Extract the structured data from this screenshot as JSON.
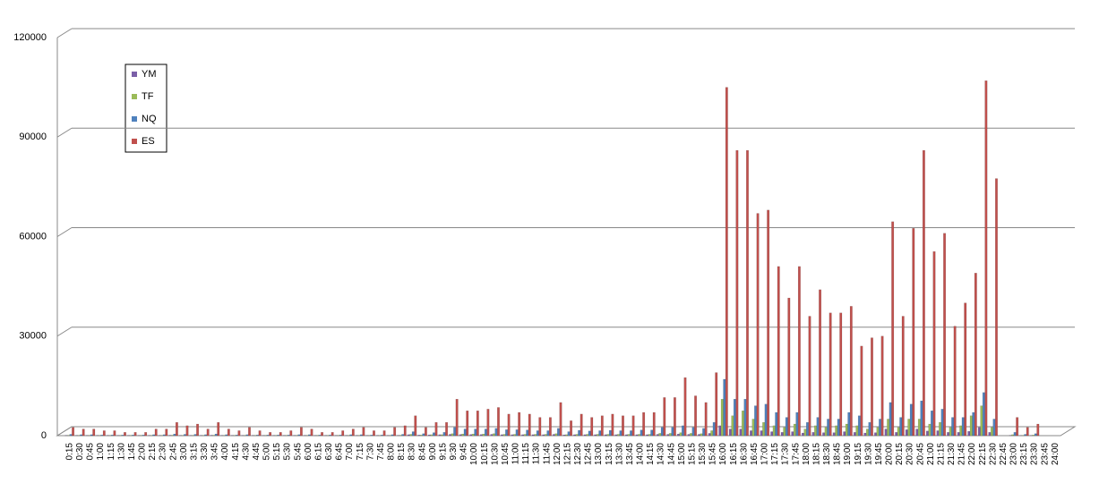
{
  "chart_data": {
    "type": "bar",
    "categories": [
      "0:15",
      "0:30",
      "0:45",
      "1:00",
      "1:15",
      "1:30",
      "1:45",
      "2:00",
      "2:15",
      "2:30",
      "2:45",
      "3:00",
      "3:15",
      "3:30",
      "3:45",
      "4:00",
      "4:15",
      "4:30",
      "4:45",
      "5:00",
      "5:15",
      "5:30",
      "5:45",
      "6:00",
      "6:15",
      "6:30",
      "6:45",
      "7:00",
      "7:15",
      "7:30",
      "7:45",
      "8:00",
      "8:15",
      "8:30",
      "8:45",
      "9:00",
      "9:15",
      "9:30",
      "9:45",
      "10:00",
      "10:15",
      "10:30",
      "10:45",
      "11:00",
      "11:15",
      "11:30",
      "11:45",
      "12:00",
      "12:15",
      "12:30",
      "12:45",
      "13:00",
      "13:15",
      "13:30",
      "13:45",
      "14:00",
      "14:15",
      "14:30",
      "14:45",
      "15:00",
      "15:15",
      "15:30",
      "15:45",
      "16:00",
      "16:15",
      "16:30",
      "16:45",
      "17:00",
      "17:15",
      "17:30",
      "17:45",
      "18:00",
      "18:15",
      "18:30",
      "18:45",
      "19:00",
      "19:15",
      "19:30",
      "19:45",
      "20:00",
      "20:15",
      "20:30",
      "20:45",
      "21:00",
      "21:15",
      "21:30",
      "21:45",
      "22:00",
      "22:15",
      "22:30",
      "22:45",
      "23:00",
      "23:15",
      "23:30",
      "23:45",
      "24:00"
    ],
    "series": [
      {
        "name": "YM",
        "color": "#7b5fa8",
        "values": [
          100,
          100,
          100,
          100,
          100,
          100,
          100,
          100,
          100,
          100,
          150,
          100,
          100,
          100,
          150,
          100,
          100,
          100,
          100,
          100,
          100,
          100,
          100,
          100,
          100,
          100,
          100,
          100,
          100,
          100,
          100,
          100,
          100,
          300,
          200,
          250,
          300,
          400,
          350,
          350,
          350,
          400,
          300,
          300,
          300,
          300,
          300,
          400,
          250,
          300,
          300,
          300,
          300,
          300,
          300,
          300,
          300,
          400,
          400,
          500,
          400,
          400,
          700,
          3000,
          2000,
          2000,
          1500,
          1500,
          1200,
          1000,
          1200,
          800,
          1000,
          900,
          900,
          1200,
          1000,
          800,
          900,
          2000,
          1000,
          1800,
          2000,
          1400,
          1500,
          1000,
          1000,
          1300,
          2500,
          1000,
          0,
          100,
          50,
          80,
          0,
          0
        ]
      },
      {
        "name": "TF",
        "color": "#9bbb59",
        "values": [
          100,
          100,
          100,
          100,
          100,
          100,
          100,
          100,
          100,
          100,
          150,
          100,
          100,
          100,
          150,
          100,
          100,
          100,
          100,
          100,
          100,
          100,
          100,
          100,
          100,
          100,
          100,
          100,
          100,
          100,
          100,
          100,
          150,
          400,
          200,
          300,
          300,
          600,
          500,
          500,
          500,
          600,
          400,
          400,
          400,
          400,
          400,
          600,
          300,
          400,
          400,
          400,
          400,
          400,
          400,
          400,
          400,
          700,
          700,
          900,
          700,
          600,
          1500,
          11000,
          6000,
          7500,
          5000,
          4000,
          3000,
          2500,
          3500,
          2000,
          3000,
          2500,
          3000,
          3500,
          3000,
          2000,
          2500,
          5000,
          2500,
          5000,
          5000,
          3500,
          4000,
          2500,
          3000,
          6000,
          9000,
          2500,
          0,
          300,
          100,
          200,
          0,
          0
        ]
      },
      {
        "name": "NQ",
        "color": "#4f81bd",
        "values": [
          400,
          300,
          300,
          200,
          200,
          200,
          200,
          200,
          300,
          300,
          500,
          400,
          400,
          300,
          500,
          300,
          200,
          300,
          200,
          200,
          200,
          200,
          300,
          300,
          200,
          200,
          200,
          300,
          300,
          200,
          200,
          300,
          400,
          1200,
          600,
          900,
          1000,
          2500,
          2000,
          2000,
          2000,
          2200,
          1800,
          1800,
          1700,
          1500,
          1500,
          2200,
          1200,
          1600,
          1400,
          1500,
          1600,
          1500,
          1500,
          1700,
          1700,
          2500,
          2500,
          3000,
          2500,
          2200,
          4000,
          17000,
          11000,
          11000,
          9000,
          9500,
          7000,
          5500,
          7000,
          4000,
          5500,
          5000,
          5000,
          7000,
          6000,
          4000,
          5000,
          10000,
          5500,
          9500,
          10500,
          7500,
          8000,
          5500,
          5500,
          7000,
          13000,
          5000,
          0,
          1000,
          400,
          600,
          0,
          0
        ]
      },
      {
        "name": "ES",
        "color": "#c0504d",
        "values": [
          2500,
          2000,
          2000,
          1500,
          1500,
          1000,
          1000,
          1000,
          2000,
          2000,
          4000,
          3000,
          3500,
          2000,
          4000,
          2000,
          1500,
          2500,
          1500,
          1000,
          1000,
          1500,
          2500,
          2000,
          1000,
          1000,
          1500,
          2000,
          2500,
          1500,
          1500,
          2500,
          3000,
          6000,
          2500,
          4000,
          4000,
          11000,
          7500,
          7500,
          8000,
          8500,
          6500,
          7000,
          6500,
          5500,
          5500,
          10000,
          4500,
          6500,
          5500,
          6000,
          6500,
          6000,
          6000,
          7000,
          7000,
          11500,
          11500,
          17500,
          12000,
          10000,
          19000,
          105000,
          86000,
          86000,
          67000,
          68000,
          51000,
          41500,
          51000,
          36000,
          44000,
          37000,
          37000,
          39000,
          27000,
          29500,
          30000,
          64500,
          36000,
          62500,
          86000,
          55500,
          61000,
          33000,
          40000,
          49000,
          107000,
          77500,
          0,
          5500,
          2500,
          3500,
          0,
          0
        ]
      }
    ],
    "ylim": [
      0,
      120000
    ],
    "yticks": [
      0,
      30000,
      60000,
      90000,
      120000
    ],
    "grid": true
  }
}
